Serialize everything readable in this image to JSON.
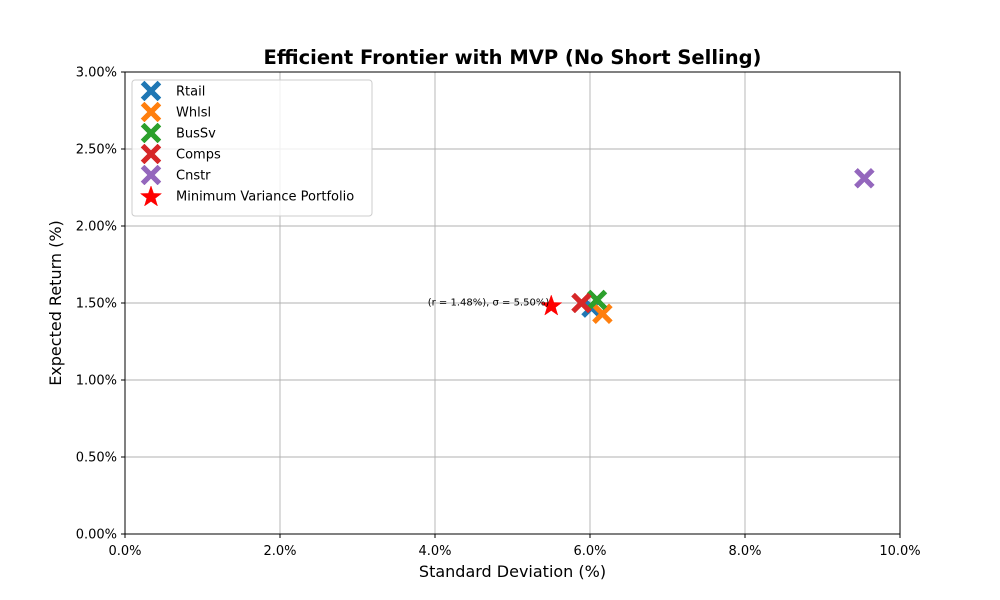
{
  "chart_data": {
    "type": "scatter",
    "title": "Efficient Frontier with MVP (No Short Selling)",
    "xlabel": "Standard Deviation (%)",
    "ylabel": "Expected Return (%)",
    "xlim": [
      0,
      10
    ],
    "ylim": [
      0,
      3
    ],
    "xticks": [
      0,
      2,
      4,
      6,
      8,
      10
    ],
    "xtick_labels": [
      "0.0%",
      "2.0%",
      "4.0%",
      "6.0%",
      "8.0%",
      "10.0%"
    ],
    "yticks": [
      0,
      0.5,
      1,
      1.5,
      2,
      2.5,
      3
    ],
    "ytick_labels": [
      "0.00%",
      "0.50%",
      "1.00%",
      "1.50%",
      "2.00%",
      "2.50%",
      "3.00%"
    ],
    "grid": true,
    "legend_position": "top-left",
    "series": [
      {
        "name": "Rtail",
        "marker": "X",
        "color": "#1f77b4",
        "x": [
          6.02
        ],
        "y": [
          1.47
        ]
      },
      {
        "name": "Whlsl",
        "marker": "X",
        "color": "#ff7f0e",
        "x": [
          6.16
        ],
        "y": [
          1.43
        ]
      },
      {
        "name": "BusSv",
        "marker": "X",
        "color": "#2ca02c",
        "x": [
          6.09
        ],
        "y": [
          1.52
        ]
      },
      {
        "name": "Comps",
        "marker": "X",
        "color": "#d62728",
        "x": [
          5.89
        ],
        "y": [
          1.5
        ]
      },
      {
        "name": "Cnstr",
        "marker": "X",
        "color": "#9467bd",
        "x": [
          9.54
        ],
        "y": [
          2.31
        ]
      },
      {
        "name": "Minimum Variance Portfolio",
        "marker": "star",
        "color": "#ff0000",
        "x": [
          5.5
        ],
        "y": [
          1.48
        ]
      }
    ],
    "annotations": [
      {
        "text": "(r = 1.48%), σ = 5.50%)",
        "x": 5.5,
        "y": 1.48
      }
    ]
  }
}
